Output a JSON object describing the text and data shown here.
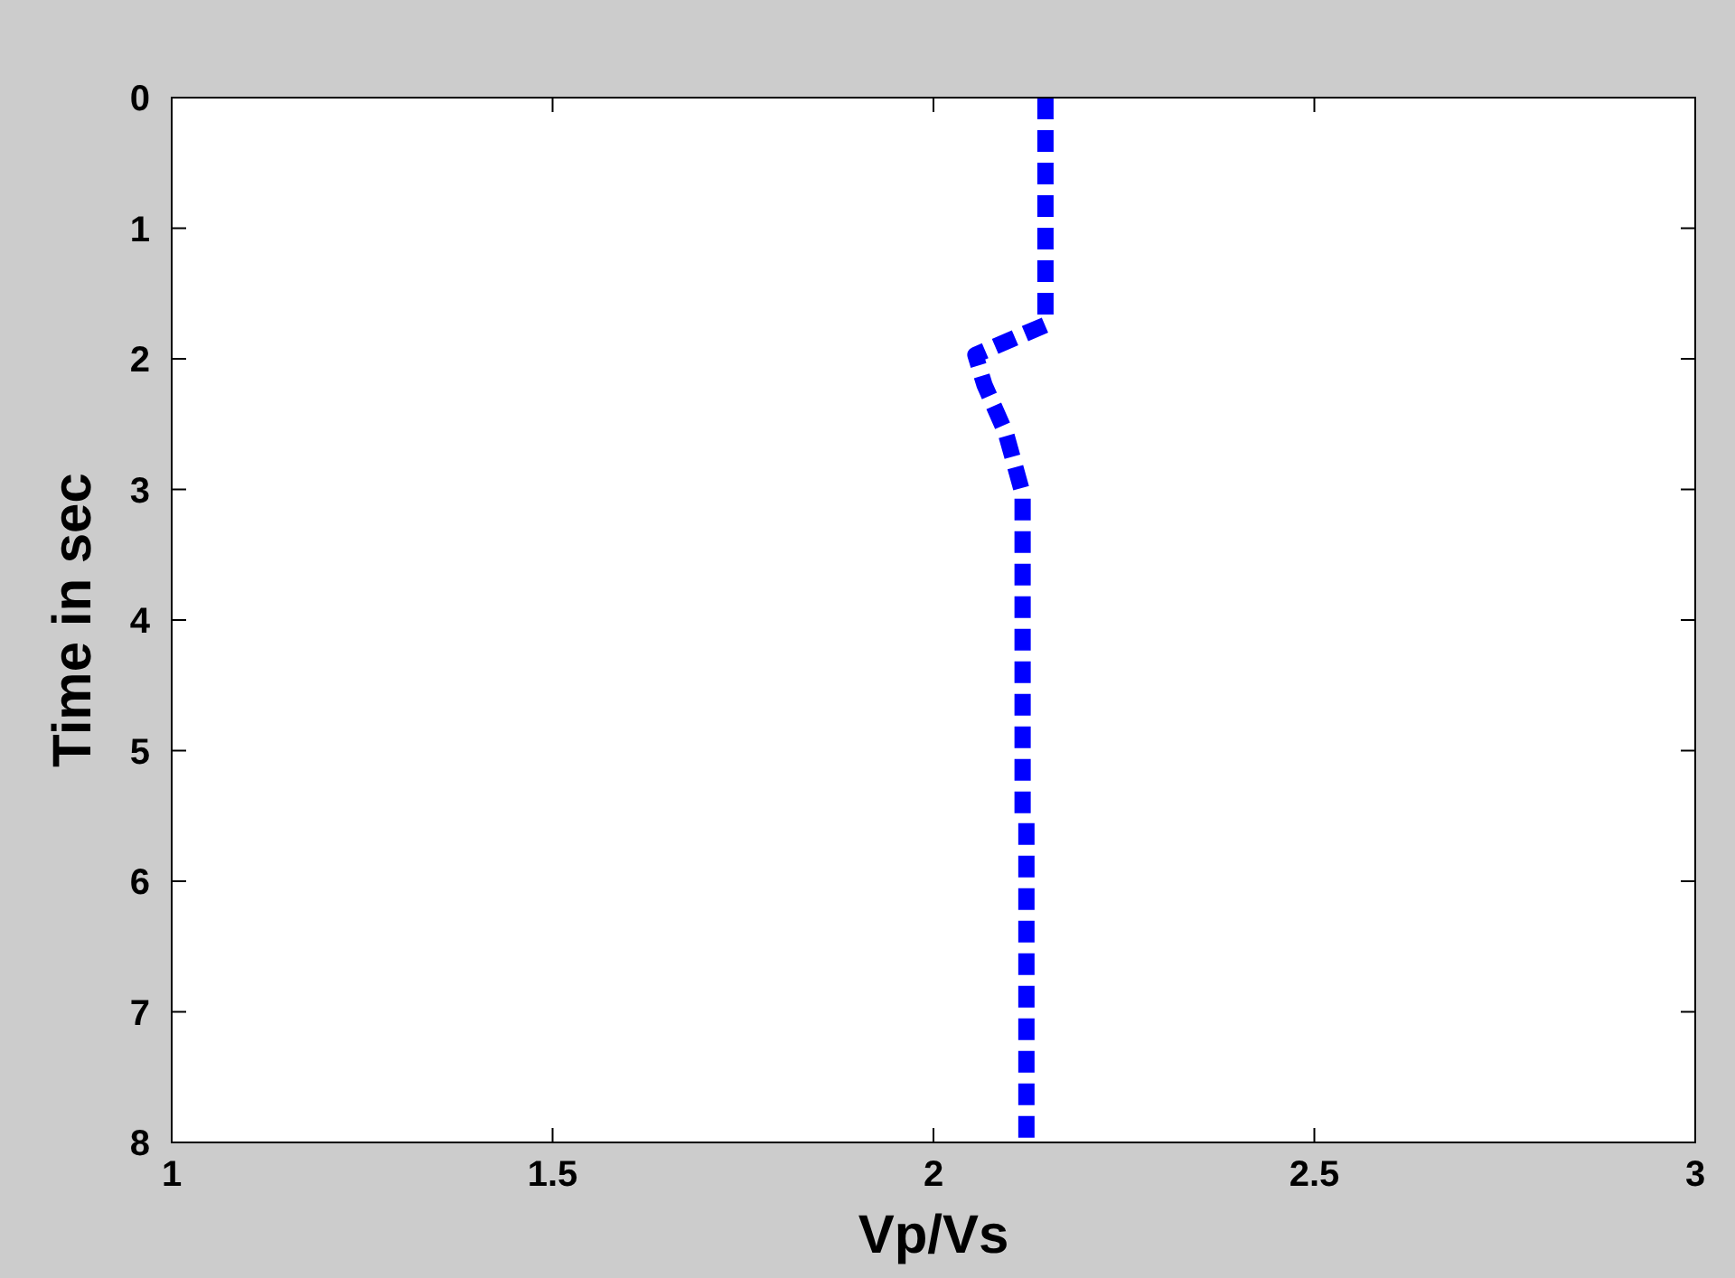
{
  "chart_data": {
    "type": "line",
    "xlabel": "Vp/Vs",
    "ylabel": "Time in sec",
    "xlim": [
      1,
      3
    ],
    "xticks": [
      1,
      1.5,
      2,
      2.5,
      3
    ],
    "ylim": [
      8,
      0
    ],
    "yticks": [
      0,
      1,
      2,
      3,
      4,
      5,
      6,
      7,
      8
    ],
    "grid": false,
    "line_style": "dashed",
    "series": [
      {
        "color": "#0000ff",
        "x": [
          2.147,
          2.147,
          2.055,
          2.067,
          2.095,
          2.117,
          2.117,
          2.122,
          2.122
        ],
        "values": [
          0,
          1.74,
          1.97,
          2.2,
          2.57,
          3.03,
          5.5,
          5.55,
          8
        ]
      }
    ]
  }
}
